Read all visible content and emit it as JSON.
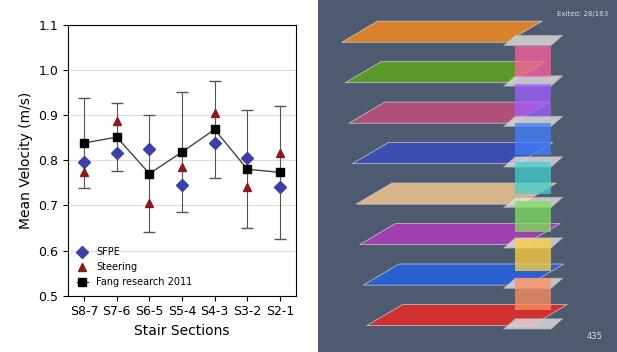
{
  "chart_data": {
    "type": "line",
    "xlabel": "Stair Sections",
    "ylabel": "Mean Velocity (m/s)",
    "categories": [
      "S8-7",
      "S7-6",
      "S6-5",
      "S5-4",
      "S4-3",
      "S3-2",
      "S2-1"
    ],
    "ylim": [
      0.5,
      1.1
    ],
    "yticks": [
      0.5,
      0.6,
      0.7,
      0.8,
      0.9,
      1.0,
      1.1
    ],
    "grid": true,
    "legend": "lower left",
    "series": [
      {
        "name": "SFPE",
        "color": "#3b3fa8",
        "marker": "diamond",
        "line_style": "none",
        "values": [
          0.795,
          0.815,
          0.825,
          0.745,
          0.838,
          0.805,
          0.74
        ]
      },
      {
        "name": "Steering",
        "color": "#8b1a1a",
        "marker": "triangle",
        "line_style": "none",
        "values": [
          0.773,
          0.887,
          0.705,
          0.785,
          0.905,
          0.74,
          0.815
        ]
      },
      {
        "name": "Fang research 2011",
        "color": "#000000",
        "marker": "square",
        "line_style": "solid",
        "values": [
          0.838,
          0.851,
          0.77,
          0.818,
          0.868,
          0.78,
          0.773
        ],
        "errors": [
          0.1,
          0.075,
          0.13,
          0.133,
          0.107,
          0.13,
          0.148
        ]
      }
    ]
  },
  "rendering": {
    "status": "Exited: 28/163",
    "frame": "435"
  }
}
